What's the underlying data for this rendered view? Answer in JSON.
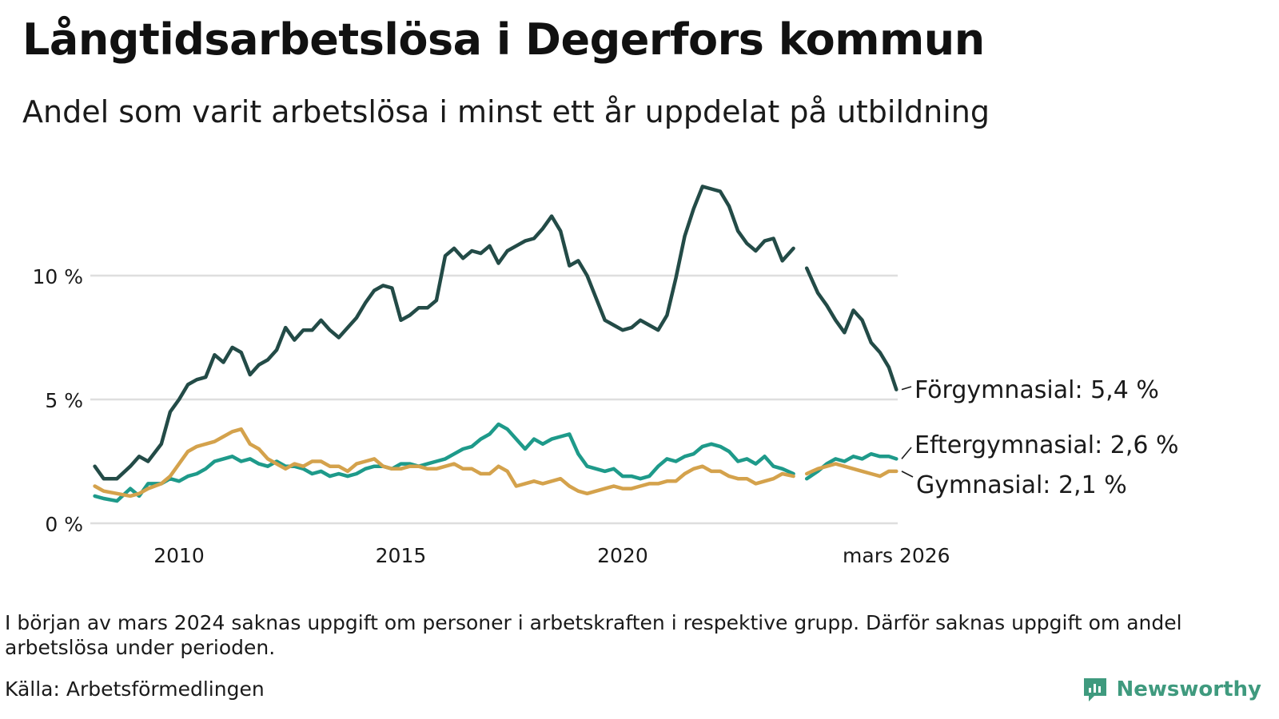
{
  "header": {
    "title": "Långtidsarbetslösa i Degerfors kommun",
    "subtitle": "Andel som varit arbetslösa i minst ett år uppdelat på utbildning"
  },
  "footer": {
    "note": "I början av mars 2024 saknas uppgift om personer i arbetskraften i respektive grupp. Därför saknas uppgift om andel arbetslösa under perioden.",
    "source": "Källa: Arbetsförmedlingen",
    "brand": "Newsworthy"
  },
  "colors": {
    "forgymnasial": "#234b47",
    "eftergymnasial": "#1e9a8a",
    "gymnasial": "#d4a24c",
    "grid": "#dedede",
    "brand": "#3f9a7e"
  },
  "chart_data": {
    "type": "line",
    "title": "Långtidsarbetslösa i Degerfors kommun",
    "xlabel": "",
    "ylabel": "",
    "xlim": [
      2008.1,
      2026.2
    ],
    "ylim": [
      0,
      14
    ],
    "yticks": [
      0,
      5,
      10
    ],
    "ytick_labels": [
      "0 %",
      "5 %",
      "10 %"
    ],
    "xticks": [
      2010,
      2015,
      2020,
      2026.17
    ],
    "xtick_labels": [
      "2010",
      "2015",
      "2020",
      "mars 2026"
    ],
    "grid": true,
    "legend": "direct labels at right end of each line",
    "gap": [
      2023.85,
      2024.15
    ],
    "series": [
      {
        "name": "Förgymnasial",
        "label": "Förgymnasial: 5,4 %",
        "color": "#234b47",
        "points": [
          [
            2008.1,
            2.3
          ],
          [
            2008.3,
            1.8
          ],
          [
            2008.6,
            1.8
          ],
          [
            2008.9,
            2.3
          ],
          [
            2009.1,
            2.7
          ],
          [
            2009.3,
            2.5
          ],
          [
            2009.6,
            3.2
          ],
          [
            2009.8,
            4.5
          ],
          [
            2010.0,
            5.0
          ],
          [
            2010.2,
            5.6
          ],
          [
            2010.4,
            5.8
          ],
          [
            2010.6,
            5.9
          ],
          [
            2010.8,
            6.8
          ],
          [
            2011.0,
            6.5
          ],
          [
            2011.2,
            7.1
          ],
          [
            2011.4,
            6.9
          ],
          [
            2011.6,
            6.0
          ],
          [
            2011.8,
            6.4
          ],
          [
            2012.0,
            6.6
          ],
          [
            2012.2,
            7.0
          ],
          [
            2012.4,
            7.9
          ],
          [
            2012.6,
            7.4
          ],
          [
            2012.8,
            7.8
          ],
          [
            2013.0,
            7.8
          ],
          [
            2013.2,
            8.2
          ],
          [
            2013.4,
            7.8
          ],
          [
            2013.6,
            7.5
          ],
          [
            2013.8,
            7.9
          ],
          [
            2014.0,
            8.3
          ],
          [
            2014.2,
            8.9
          ],
          [
            2014.4,
            9.4
          ],
          [
            2014.6,
            9.6
          ],
          [
            2014.8,
            9.5
          ],
          [
            2015.0,
            8.2
          ],
          [
            2015.2,
            8.4
          ],
          [
            2015.4,
            8.7
          ],
          [
            2015.6,
            8.7
          ],
          [
            2015.8,
            9.0
          ],
          [
            2016.0,
            10.8
          ],
          [
            2016.2,
            11.1
          ],
          [
            2016.4,
            10.7
          ],
          [
            2016.6,
            11.0
          ],
          [
            2016.8,
            10.9
          ],
          [
            2017.0,
            11.2
          ],
          [
            2017.2,
            10.5
          ],
          [
            2017.4,
            11.0
          ],
          [
            2017.6,
            11.2
          ],
          [
            2017.8,
            11.4
          ],
          [
            2018.0,
            11.5
          ],
          [
            2018.2,
            11.9
          ],
          [
            2018.4,
            12.4
          ],
          [
            2018.6,
            11.8
          ],
          [
            2018.8,
            10.4
          ],
          [
            2019.0,
            10.6
          ],
          [
            2019.2,
            10.0
          ],
          [
            2019.4,
            9.1
          ],
          [
            2019.6,
            8.2
          ],
          [
            2019.8,
            8.0
          ],
          [
            2020.0,
            7.8
          ],
          [
            2020.2,
            7.9
          ],
          [
            2020.4,
            8.2
          ],
          [
            2020.6,
            8.0
          ],
          [
            2020.8,
            7.8
          ],
          [
            2021.0,
            8.4
          ],
          [
            2021.2,
            9.9
          ],
          [
            2021.4,
            11.6
          ],
          [
            2021.6,
            12.7
          ],
          [
            2021.8,
            13.6
          ],
          [
            2022.0,
            13.5
          ],
          [
            2022.2,
            13.4
          ],
          [
            2022.4,
            12.8
          ],
          [
            2022.6,
            11.8
          ],
          [
            2022.8,
            11.3
          ],
          [
            2023.0,
            11.0
          ],
          [
            2023.2,
            11.4
          ],
          [
            2023.4,
            11.5
          ],
          [
            2023.6,
            10.6
          ],
          [
            2023.85,
            11.1
          ],
          [
            2024.15,
            10.3
          ],
          [
            2024.4,
            9.3
          ],
          [
            2024.6,
            8.8
          ],
          [
            2024.8,
            8.2
          ],
          [
            2025.0,
            7.7
          ],
          [
            2025.2,
            8.6
          ],
          [
            2025.4,
            8.2
          ],
          [
            2025.6,
            7.3
          ],
          [
            2025.8,
            6.9
          ],
          [
            2026.0,
            6.3
          ],
          [
            2026.17,
            5.4
          ]
        ]
      },
      {
        "name": "Eftergymnasial",
        "label": "Eftergymnasial: 2,6 %",
        "color": "#1e9a8a",
        "points": [
          [
            2008.1,
            1.1
          ],
          [
            2008.3,
            1.0
          ],
          [
            2008.6,
            0.9
          ],
          [
            2008.9,
            1.4
          ],
          [
            2009.1,
            1.1
          ],
          [
            2009.3,
            1.6
          ],
          [
            2009.6,
            1.6
          ],
          [
            2009.8,
            1.8
          ],
          [
            2010.0,
            1.7
          ],
          [
            2010.2,
            1.9
          ],
          [
            2010.4,
            2.0
          ],
          [
            2010.6,
            2.2
          ],
          [
            2010.8,
            2.5
          ],
          [
            2011.0,
            2.6
          ],
          [
            2011.2,
            2.7
          ],
          [
            2011.4,
            2.5
          ],
          [
            2011.6,
            2.6
          ],
          [
            2011.8,
            2.4
          ],
          [
            2012.0,
            2.3
          ],
          [
            2012.2,
            2.5
          ],
          [
            2012.4,
            2.3
          ],
          [
            2012.6,
            2.3
          ],
          [
            2012.8,
            2.2
          ],
          [
            2013.0,
            2.0
          ],
          [
            2013.2,
            2.1
          ],
          [
            2013.4,
            1.9
          ],
          [
            2013.6,
            2.0
          ],
          [
            2013.8,
            1.9
          ],
          [
            2014.0,
            2.0
          ],
          [
            2014.2,
            2.2
          ],
          [
            2014.4,
            2.3
          ],
          [
            2014.6,
            2.3
          ],
          [
            2014.8,
            2.2
          ],
          [
            2015.0,
            2.4
          ],
          [
            2015.2,
            2.4
          ],
          [
            2015.4,
            2.3
          ],
          [
            2015.6,
            2.4
          ],
          [
            2015.8,
            2.5
          ],
          [
            2016.0,
            2.6
          ],
          [
            2016.2,
            2.8
          ],
          [
            2016.4,
            3.0
          ],
          [
            2016.6,
            3.1
          ],
          [
            2016.8,
            3.4
          ],
          [
            2017.0,
            3.6
          ],
          [
            2017.2,
            4.0
          ],
          [
            2017.4,
            3.8
          ],
          [
            2017.6,
            3.4
          ],
          [
            2017.8,
            3.0
          ],
          [
            2018.0,
            3.4
          ],
          [
            2018.2,
            3.2
          ],
          [
            2018.4,
            3.4
          ],
          [
            2018.6,
            3.5
          ],
          [
            2018.8,
            3.6
          ],
          [
            2019.0,
            2.8
          ],
          [
            2019.2,
            2.3
          ],
          [
            2019.4,
            2.2
          ],
          [
            2019.6,
            2.1
          ],
          [
            2019.8,
            2.2
          ],
          [
            2020.0,
            1.9
          ],
          [
            2020.2,
            1.9
          ],
          [
            2020.4,
            1.8
          ],
          [
            2020.6,
            1.9
          ],
          [
            2020.8,
            2.3
          ],
          [
            2021.0,
            2.6
          ],
          [
            2021.2,
            2.5
          ],
          [
            2021.4,
            2.7
          ],
          [
            2021.6,
            2.8
          ],
          [
            2021.8,
            3.1
          ],
          [
            2022.0,
            3.2
          ],
          [
            2022.2,
            3.1
          ],
          [
            2022.4,
            2.9
          ],
          [
            2022.6,
            2.5
          ],
          [
            2022.8,
            2.6
          ],
          [
            2023.0,
            2.4
          ],
          [
            2023.2,
            2.7
          ],
          [
            2023.4,
            2.3
          ],
          [
            2023.6,
            2.2
          ],
          [
            2023.85,
            2.0
          ],
          [
            2024.15,
            1.8
          ],
          [
            2024.4,
            2.1
          ],
          [
            2024.6,
            2.4
          ],
          [
            2024.8,
            2.6
          ],
          [
            2025.0,
            2.5
          ],
          [
            2025.2,
            2.7
          ],
          [
            2025.4,
            2.6
          ],
          [
            2025.6,
            2.8
          ],
          [
            2025.8,
            2.7
          ],
          [
            2026.0,
            2.7
          ],
          [
            2026.17,
            2.6
          ]
        ]
      },
      {
        "name": "Gymnasial",
        "label": "Gymnasial: 2,1 %",
        "color": "#d4a24c",
        "points": [
          [
            2008.1,
            1.5
          ],
          [
            2008.3,
            1.3
          ],
          [
            2008.6,
            1.2
          ],
          [
            2008.9,
            1.1
          ],
          [
            2009.1,
            1.2
          ],
          [
            2009.3,
            1.4
          ],
          [
            2009.6,
            1.6
          ],
          [
            2009.8,
            1.9
          ],
          [
            2010.0,
            2.4
          ],
          [
            2010.2,
            2.9
          ],
          [
            2010.4,
            3.1
          ],
          [
            2010.6,
            3.2
          ],
          [
            2010.8,
            3.3
          ],
          [
            2011.0,
            3.5
          ],
          [
            2011.2,
            3.7
          ],
          [
            2011.4,
            3.8
          ],
          [
            2011.6,
            3.2
          ],
          [
            2011.8,
            3.0
          ],
          [
            2012.0,
            2.6
          ],
          [
            2012.2,
            2.4
          ],
          [
            2012.4,
            2.2
          ],
          [
            2012.6,
            2.4
          ],
          [
            2012.8,
            2.3
          ],
          [
            2013.0,
            2.5
          ],
          [
            2013.2,
            2.5
          ],
          [
            2013.4,
            2.3
          ],
          [
            2013.6,
            2.3
          ],
          [
            2013.8,
            2.1
          ],
          [
            2014.0,
            2.4
          ],
          [
            2014.2,
            2.5
          ],
          [
            2014.4,
            2.6
          ],
          [
            2014.6,
            2.3
          ],
          [
            2014.8,
            2.2
          ],
          [
            2015.0,
            2.2
          ],
          [
            2015.2,
            2.3
          ],
          [
            2015.4,
            2.3
          ],
          [
            2015.6,
            2.2
          ],
          [
            2015.8,
            2.2
          ],
          [
            2016.0,
            2.3
          ],
          [
            2016.2,
            2.4
          ],
          [
            2016.4,
            2.2
          ],
          [
            2016.6,
            2.2
          ],
          [
            2016.8,
            2.0
          ],
          [
            2017.0,
            2.0
          ],
          [
            2017.2,
            2.3
          ],
          [
            2017.4,
            2.1
          ],
          [
            2017.6,
            1.5
          ],
          [
            2017.8,
            1.6
          ],
          [
            2018.0,
            1.7
          ],
          [
            2018.2,
            1.6
          ],
          [
            2018.4,
            1.7
          ],
          [
            2018.6,
            1.8
          ],
          [
            2018.8,
            1.5
          ],
          [
            2019.0,
            1.3
          ],
          [
            2019.2,
            1.2
          ],
          [
            2019.4,
            1.3
          ],
          [
            2019.6,
            1.4
          ],
          [
            2019.8,
            1.5
          ],
          [
            2020.0,
            1.4
          ],
          [
            2020.2,
            1.4
          ],
          [
            2020.4,
            1.5
          ],
          [
            2020.6,
            1.6
          ],
          [
            2020.8,
            1.6
          ],
          [
            2021.0,
            1.7
          ],
          [
            2021.2,
            1.7
          ],
          [
            2021.4,
            2.0
          ],
          [
            2021.6,
            2.2
          ],
          [
            2021.8,
            2.3
          ],
          [
            2022.0,
            2.1
          ],
          [
            2022.2,
            2.1
          ],
          [
            2022.4,
            1.9
          ],
          [
            2022.6,
            1.8
          ],
          [
            2022.8,
            1.8
          ],
          [
            2023.0,
            1.6
          ],
          [
            2023.2,
            1.7
          ],
          [
            2023.4,
            1.8
          ],
          [
            2023.6,
            2.0
          ],
          [
            2023.85,
            1.9
          ],
          [
            2024.15,
            2.0
          ],
          [
            2024.4,
            2.2
          ],
          [
            2024.6,
            2.3
          ],
          [
            2024.8,
            2.4
          ],
          [
            2025.0,
            2.3
          ],
          [
            2025.2,
            2.2
          ],
          [
            2025.4,
            2.1
          ],
          [
            2025.6,
            2.0
          ],
          [
            2025.8,
            1.9
          ],
          [
            2026.0,
            2.1
          ],
          [
            2026.17,
            2.1
          ]
        ]
      }
    ]
  }
}
